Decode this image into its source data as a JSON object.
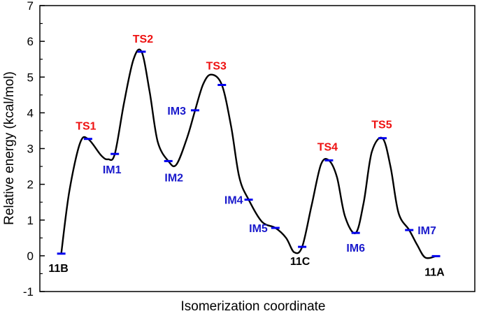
{
  "chart_data": {
    "type": "line",
    "xlabel": "Isomerization coordinate",
    "ylabel": "Relative energy (kcal/mol)",
    "ylim": [
      -1,
      7
    ],
    "yticks": [
      "-1",
      "0",
      "1",
      "2",
      "3",
      "4",
      "5",
      "6",
      "7"
    ],
    "grid": false,
    "colors": {
      "curve": "#000000",
      "level_marker": "#0000ee",
      "ts_label": "#ee1111",
      "im_label": "#1a1acc",
      "species_label": "#000000"
    },
    "points": [
      {
        "label": "11B",
        "x": 1,
        "energy": 0.06,
        "kind": "species"
      },
      {
        "label": "TS1",
        "x": 2,
        "energy": 3.27,
        "kind": "ts"
      },
      {
        "label": "IM1",
        "x": 3,
        "energy": 2.85,
        "kind": "im"
      },
      {
        "label": "TS2",
        "x": 4,
        "energy": 5.71,
        "kind": "ts"
      },
      {
        "label": "IM2",
        "x": 5,
        "energy": 2.65,
        "kind": "im"
      },
      {
        "label": "IM3",
        "x": 6,
        "energy": 4.07,
        "kind": "im"
      },
      {
        "label": "TS3",
        "x": 7,
        "energy": 4.78,
        "kind": "ts"
      },
      {
        "label": "IM4",
        "x": 8,
        "energy": 1.57,
        "kind": "im"
      },
      {
        "label": "IM5",
        "x": 9,
        "energy": 0.78,
        "kind": "im"
      },
      {
        "label": "11C",
        "x": 10,
        "energy": 0.25,
        "kind": "species"
      },
      {
        "label": "TS4",
        "x": 11,
        "energy": 2.67,
        "kind": "ts"
      },
      {
        "label": "IM6",
        "x": 12,
        "energy": 0.64,
        "kind": "im"
      },
      {
        "label": "TS5",
        "x": 13,
        "energy": 3.29,
        "kind": "ts"
      },
      {
        "label": "IM7",
        "x": 14,
        "energy": 0.72,
        "kind": "im"
      },
      {
        "label": "11A",
        "x": 15,
        "energy": -0.01,
        "kind": "species"
      }
    ],
    "curve": [
      [
        1,
        0.06
      ],
      [
        1.3,
        1.8
      ],
      [
        1.7,
        3.15
      ],
      [
        2,
        3.27
      ],
      [
        2.5,
        2.8
      ],
      [
        2.75,
        2.7
      ],
      [
        3,
        2.85
      ],
      [
        3.35,
        4.3
      ],
      [
        3.7,
        5.5
      ],
      [
        4,
        5.71
      ],
      [
        4.3,
        4.6
      ],
      [
        4.6,
        3.2
      ],
      [
        5,
        2.65
      ],
      [
        5.3,
        2.55
      ],
      [
        5.7,
        3.3
      ],
      [
        6,
        4.07
      ],
      [
        6.3,
        4.8
      ],
      [
        6.6,
        5.07
      ],
      [
        7,
        4.78
      ],
      [
        7.35,
        3.6
      ],
      [
        7.65,
        2.2
      ],
      [
        8,
        1.57
      ],
      [
        8.5,
        0.95
      ],
      [
        9,
        0.78
      ],
      [
        9.4,
        0.5
      ],
      [
        9.7,
        0.1
      ],
      [
        10,
        0.25
      ],
      [
        10.35,
        1.4
      ],
      [
        10.7,
        2.55
      ],
      [
        11,
        2.67
      ],
      [
        11.3,
        2.2
      ],
      [
        11.6,
        1.1
      ],
      [
        12,
        0.64
      ],
      [
        12.3,
        1.5
      ],
      [
        12.6,
        2.9
      ],
      [
        13,
        3.29
      ],
      [
        13.3,
        2.5
      ],
      [
        13.6,
        1.2
      ],
      [
        14,
        0.72
      ],
      [
        14.3,
        0.3
      ],
      [
        14.6,
        -0.05
      ],
      [
        15,
        -0.01
      ]
    ]
  }
}
